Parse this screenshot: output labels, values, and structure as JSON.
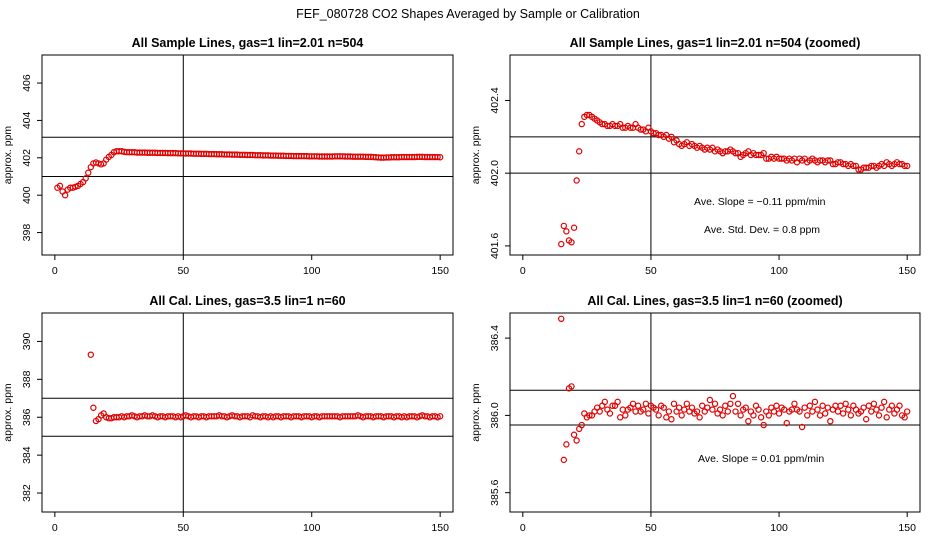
{
  "figure_title": "FEF_080728  CO2 Shapes Averaged by Sample or Calibration",
  "colors": {
    "points": "#e00000",
    "lines": "#000000",
    "background": "#ffffff"
  },
  "chart_data": [
    {
      "type": "scatter",
      "title": "All Sample Lines, gas=1 lin=2.01 n=504",
      "xlabel": "",
      "ylabel": "approx. ppm",
      "xlim": [
        -5,
        155
      ],
      "ylim": [
        396.8,
        407.5
      ],
      "xticks": [
        0,
        50,
        100,
        150
      ],
      "yticks": [
        398,
        400,
        402,
        404,
        406
      ],
      "vline": 50,
      "hlines": [
        401.0,
        403.1
      ],
      "annotations": [],
      "x": [
        1,
        2,
        3,
        4,
        5,
        6,
        7,
        8,
        9,
        10,
        11,
        12,
        13,
        14,
        15,
        16,
        17,
        18,
        19,
        20,
        21,
        22,
        23,
        24,
        25,
        26,
        27,
        28,
        29,
        30,
        31,
        32,
        33,
        34,
        35,
        36,
        37,
        38,
        39,
        40,
        41,
        42,
        43,
        44,
        45,
        46,
        47,
        48,
        49,
        50,
        51,
        52,
        53,
        54,
        55,
        56,
        57,
        58,
        59,
        60,
        61,
        62,
        63,
        64,
        65,
        66,
        67,
        68,
        69,
        70,
        71,
        72,
        73,
        74,
        75,
        76,
        77,
        78,
        79,
        80,
        81,
        82,
        83,
        84,
        85,
        86,
        87,
        88,
        89,
        90,
        91,
        92,
        93,
        94,
        95,
        96,
        97,
        98,
        99,
        100,
        101,
        102,
        103,
        104,
        105,
        106,
        107,
        108,
        109,
        110,
        111,
        112,
        113,
        114,
        115,
        116,
        117,
        118,
        119,
        120,
        121,
        122,
        123,
        124,
        125,
        126,
        127,
        128,
        129,
        130,
        131,
        132,
        133,
        134,
        135,
        136,
        137,
        138,
        139,
        140,
        141,
        142,
        143,
        144,
        145,
        146,
        147,
        148,
        149,
        150
      ],
      "y": [
        400.4,
        400.5,
        400.2,
        400.0,
        400.3,
        400.4,
        400.4,
        400.45,
        400.5,
        400.6,
        400.7,
        400.9,
        401.2,
        401.5,
        401.7,
        401.75,
        401.7,
        401.65,
        401.7,
        401.9,
        402.05,
        402.15,
        402.3,
        402.35,
        402.35,
        402.35,
        402.32,
        402.3,
        402.3,
        402.3,
        402.3,
        402.28,
        402.28,
        402.28,
        402.28,
        402.27,
        402.27,
        402.27,
        402.27,
        402.26,
        402.26,
        402.26,
        402.26,
        402.25,
        402.25,
        402.25,
        402.25,
        402.24,
        402.24,
        402.24,
        402.23,
        402.23,
        402.23,
        402.22,
        402.22,
        402.22,
        402.21,
        402.21,
        402.21,
        402.2,
        402.2,
        402.2,
        402.19,
        402.19,
        402.19,
        402.18,
        402.18,
        402.18,
        402.17,
        402.17,
        402.17,
        402.16,
        402.16,
        402.16,
        402.15,
        402.15,
        402.15,
        402.14,
        402.14,
        402.14,
        402.13,
        402.13,
        402.13,
        402.12,
        402.12,
        402.12,
        402.11,
        402.11,
        402.11,
        402.1,
        402.1,
        402.1,
        402.09,
        402.09,
        402.09,
        402.09,
        402.09,
        402.09,
        402.08,
        402.08,
        402.08,
        402.08,
        402.07,
        402.07,
        402.07,
        402.07,
        402.07,
        402.07,
        402.08,
        402.08,
        402.08,
        402.08,
        402.07,
        402.07,
        402.07,
        402.06,
        402.06,
        402.06,
        402.06,
        402.06,
        402.05,
        402.05,
        402.05,
        402.04,
        402.03,
        402.02,
        402.01,
        402.01,
        402.02,
        402.02,
        402.03,
        402.03,
        402.03,
        402.03,
        402.04,
        402.04,
        402.04,
        402.04,
        402.04,
        402.04,
        402.05,
        402.05,
        402.05,
        402.04,
        402.04,
        402.04,
        402.04,
        402.04,
        402.04,
        402.03
      ]
    },
    {
      "type": "scatter",
      "title": "All Sample Lines, gas=1 lin=2.01 n=504 (zoomed)",
      "xlabel": "",
      "ylabel": "approx. ppm",
      "xlim": [
        -5,
        155
      ],
      "ylim": [
        401.55,
        402.65
      ],
      "xticks": [
        0,
        50,
        100,
        150
      ],
      "yticks": [
        401.6,
        402.0,
        402.4
      ],
      "ytick_labels": [
        "401.6",
        "402.0",
        "402.4"
      ],
      "vline": 50,
      "hlines": [
        402.0,
        402.2
      ],
      "annotations": [
        "Ave. Slope =  −0.11  ppm/min",
        "Ave. Std. Dev. =  0.8  ppm"
      ],
      "x": [
        15,
        16,
        17,
        18,
        19,
        20,
        21,
        22,
        23,
        24,
        25,
        26,
        27,
        28,
        29,
        30,
        31,
        32,
        33,
        34,
        35,
        36,
        37,
        38,
        39,
        40,
        41,
        42,
        43,
        44,
        45,
        46,
        47,
        48,
        49,
        50,
        51,
        52,
        53,
        54,
        55,
        56,
        57,
        58,
        59,
        60,
        61,
        62,
        63,
        64,
        65,
        66,
        67,
        68,
        69,
        70,
        71,
        72,
        73,
        74,
        75,
        76,
        77,
        78,
        79,
        80,
        81,
        82,
        83,
        84,
        85,
        86,
        87,
        88,
        89,
        90,
        91,
        92,
        93,
        94,
        95,
        96,
        97,
        98,
        99,
        100,
        101,
        102,
        103,
        104,
        105,
        106,
        107,
        108,
        109,
        110,
        111,
        112,
        113,
        114,
        115,
        116,
        117,
        118,
        119,
        120,
        121,
        122,
        123,
        124,
        125,
        126,
        127,
        128,
        129,
        130,
        131,
        132,
        133,
        134,
        135,
        136,
        137,
        138,
        139,
        140,
        141,
        142,
        143,
        144,
        145,
        146,
        147,
        148,
        149,
        150
      ],
      "y": [
        401.61,
        401.71,
        401.68,
        401.63,
        401.62,
        401.7,
        401.96,
        402.12,
        402.27,
        402.31,
        402.32,
        402.32,
        402.31,
        402.3,
        402.29,
        402.28,
        402.27,
        402.27,
        402.26,
        402.26,
        402.27,
        402.26,
        402.26,
        402.27,
        402.25,
        402.25,
        402.26,
        402.25,
        402.25,
        402.27,
        402.25,
        402.24,
        402.24,
        402.23,
        402.25,
        402.23,
        402.22,
        402.22,
        402.21,
        402.21,
        402.2,
        402.21,
        402.19,
        402.2,
        402.17,
        402.18,
        402.16,
        402.15,
        402.16,
        402.17,
        402.15,
        402.16,
        402.15,
        402.14,
        402.15,
        402.14,
        402.13,
        402.14,
        402.13,
        402.14,
        402.12,
        402.13,
        402.12,
        402.11,
        402.12,
        402.12,
        402.13,
        402.12,
        402.11,
        402.11,
        402.09,
        402.1,
        402.11,
        402.12,
        402.1,
        402.11,
        402.1,
        402.1,
        402.1,
        402.11,
        402.08,
        402.08,
        402.09,
        402.08,
        402.09,
        402.08,
        402.08,
        402.08,
        402.07,
        402.08,
        402.07,
        402.08,
        402.06,
        402.08,
        402.07,
        402.08,
        402.06,
        402.07,
        402.08,
        402.07,
        402.06,
        402.07,
        402.07,
        402.06,
        402.07,
        402.07,
        402.05,
        402.05,
        402.06,
        402.06,
        402.05,
        402.05,
        402.04,
        402.05,
        402.04,
        402.04,
        402.02,
        402.02,
        402.03,
        402.03,
        402.03,
        402.04,
        402.04,
        402.03,
        402.04,
        402.05,
        402.04,
        402.06,
        402.05,
        402.04,
        402.05,
        402.06,
        402.05,
        402.05,
        402.04,
        402.04
      ]
    },
    {
      "type": "scatter",
      "title": "All Cal. Lines, gas=3.5 lin=1 n=60",
      "xlabel": "",
      "ylabel": "approx. ppm",
      "xlim": [
        -5,
        155
      ],
      "ylim": [
        381.0,
        391.5
      ],
      "xticks": [
        0,
        50,
        100,
        150
      ],
      "yticks": [
        382,
        384,
        386,
        388,
        390
      ],
      "vline": 50,
      "hlines": [
        385.0,
        387.0
      ],
      "annotations": [],
      "x": [
        14,
        15,
        16,
        17,
        18,
        19,
        20,
        21,
        22,
        23,
        24,
        25,
        26,
        27,
        28,
        29,
        30,
        31,
        32,
        33,
        34,
        35,
        36,
        37,
        38,
        39,
        40,
        41,
        42,
        43,
        44,
        45,
        46,
        47,
        48,
        49,
        50,
        51,
        52,
        53,
        54,
        55,
        56,
        57,
        58,
        59,
        60,
        61,
        62,
        63,
        64,
        65,
        66,
        67,
        68,
        69,
        70,
        71,
        72,
        73,
        74,
        75,
        76,
        77,
        78,
        79,
        80,
        81,
        82,
        83,
        84,
        85,
        86,
        87,
        88,
        89,
        90,
        91,
        92,
        93,
        94,
        95,
        96,
        97,
        98,
        99,
        100,
        101,
        102,
        103,
        104,
        105,
        106,
        107,
        108,
        109,
        110,
        111,
        112,
        113,
        114,
        115,
        116,
        117,
        118,
        119,
        120,
        121,
        122,
        123,
        124,
        125,
        126,
        127,
        128,
        129,
        130,
        131,
        132,
        133,
        134,
        135,
        136,
        137,
        138,
        139,
        140,
        141,
        142,
        143,
        144,
        145,
        146,
        147,
        148,
        149,
        150
      ],
      "y": [
        389.3,
        386.5,
        385.8,
        385.9,
        386.1,
        386.2,
        386.0,
        385.95,
        385.95,
        386.0,
        386.0,
        386.0,
        386.05,
        386.0,
        386.05,
        386.05,
        386.1,
        386.05,
        386.0,
        386.05,
        386.05,
        386.1,
        386.05,
        386.05,
        386.1,
        386.05,
        386.0,
        386.05,
        386.05,
        386.0,
        386.05,
        386.05,
        386.05,
        386.0,
        386.05,
        386.0,
        386.05,
        386.1,
        386.05,
        386.0,
        386.05,
        386.05,
        386.0,
        386.05,
        386.05,
        386.0,
        386.05,
        386.05,
        386.05,
        386.05,
        386.1,
        386.05,
        386.05,
        386.0,
        386.05,
        386.1,
        386.05,
        386.05,
        386.0,
        386.05,
        386.05,
        386.05,
        386.0,
        386.1,
        386.05,
        386.05,
        386.0,
        386.05,
        386.05,
        386.0,
        386.05,
        386.0,
        386.05,
        386.05,
        386.0,
        386.05,
        386.05,
        386.05,
        386.0,
        386.05,
        386.05,
        386.05,
        386.0,
        386.05,
        386.05,
        386.05,
        386.0,
        386.05,
        386.05,
        386.0,
        386.05,
        386.05,
        386.05,
        386.05,
        386.05,
        386.05,
        386.05,
        386.0,
        386.05,
        386.05,
        386.05,
        386.05,
        386.05,
        386.05,
        386.1,
        386.05,
        386.0,
        386.05,
        386.05,
        386.05,
        386.0,
        386.05,
        386.05,
        386.05,
        386.0,
        386.05,
        386.05,
        386.05,
        386.0,
        386.05,
        386.05,
        386.0,
        386.05,
        386.0,
        386.05,
        386.05,
        386.05,
        386.0,
        386.05,
        386.1,
        386.05,
        386.05,
        386.0,
        386.05,
        386.05,
        386.0,
        386.05
      ]
    },
    {
      "type": "scatter",
      "title": "All Cal. Lines, gas=3.5 lin=1 n=60 (zoomed)",
      "xlabel": "",
      "ylabel": "approx. ppm",
      "xlim": [
        -5,
        155
      ],
      "ylim": [
        385.5,
        386.53
      ],
      "xticks": [
        0,
        50,
        100,
        150
      ],
      "yticks": [
        385.6,
        386.0,
        386.4
      ],
      "ytick_labels": [
        "385.6",
        "386.0",
        "386.4"
      ],
      "vline": 50,
      "hlines": [
        385.95,
        386.13
      ],
      "annotations": [
        "Ave. Slope =  0.01  ppm/min"
      ],
      "x": [
        15,
        16,
        17,
        18,
        19,
        20,
        21,
        22,
        23,
        24,
        25,
        26,
        27,
        28,
        29,
        30,
        31,
        32,
        33,
        34,
        35,
        36,
        37,
        38,
        39,
        40,
        41,
        42,
        43,
        44,
        45,
        46,
        47,
        48,
        49,
        50,
        51,
        52,
        53,
        54,
        55,
        56,
        57,
        58,
        59,
        60,
        61,
        62,
        63,
        64,
        65,
        66,
        67,
        68,
        69,
        70,
        71,
        72,
        73,
        74,
        75,
        76,
        77,
        78,
        79,
        80,
        81,
        82,
        83,
        84,
        85,
        86,
        87,
        88,
        89,
        90,
        91,
        92,
        93,
        94,
        95,
        96,
        97,
        98,
        99,
        100,
        101,
        102,
        103,
        104,
        105,
        106,
        107,
        108,
        109,
        110,
        111,
        112,
        113,
        114,
        115,
        116,
        117,
        118,
        119,
        120,
        121,
        122,
        123,
        124,
        125,
        126,
        127,
        128,
        129,
        130,
        131,
        132,
        133,
        134,
        135,
        136,
        137,
        138,
        139,
        140,
        141,
        142,
        143,
        144,
        145,
        146,
        147,
        148,
        149,
        150
      ],
      "y": [
        386.5,
        385.77,
        385.85,
        386.14,
        386.15,
        385.9,
        385.87,
        385.93,
        385.95,
        386.01,
        385.99,
        386.0,
        386.0,
        386.02,
        386.04,
        386.02,
        386.05,
        386.07,
        386.03,
        386.01,
        386.05,
        386.05,
        386.07,
        385.99,
        386.03,
        386.0,
        386.03,
        386.04,
        386.06,
        386.02,
        386.05,
        386.02,
        386.03,
        386.06,
        386.01,
        386.05,
        386.04,
        386.03,
        386.0,
        386.05,
        386.04,
        385.99,
        386.02,
        385.98,
        386.06,
        386.02,
        386.04,
        386.0,
        386.03,
        386.06,
        386.02,
        386.04,
        386.01,
        386.02,
        385.99,
        386.05,
        386.02,
        386.04,
        386.08,
        386.03,
        386.06,
        386.01,
        386.03,
        386.0,
        386.05,
        386.02,
        386.06,
        386.1,
        386.02,
        386.06,
        386.0,
        386.03,
        386.04,
        385.97,
        386.02,
        386.0,
        386.05,
        386.03,
        385.99,
        385.95,
        386.02,
        386.0,
        386.04,
        386.02,
        386.05,
        386.01,
        386.04,
        386.03,
        385.96,
        386.02,
        386.03,
        386.06,
        386.03,
        386.02,
        385.94,
        386.04,
        386.0,
        386.05,
        386.02,
        386.07,
        386.03,
        386.0,
        386.05,
        386.01,
        386.04,
        385.97,
        386.03,
        386.05,
        386.02,
        386.05,
        386.01,
        386.06,
        386.03,
        386.0,
        386.05,
        386.03,
        386.01,
        386.02,
        386.04,
        385.98,
        386.05,
        386.02,
        386.06,
        386.03,
        386.0,
        386.04,
        386.07,
        385.99,
        386.03,
        386.05,
        386.01,
        386.03,
        386.05,
        386.0,
        385.99,
        386.02
      ]
    }
  ]
}
